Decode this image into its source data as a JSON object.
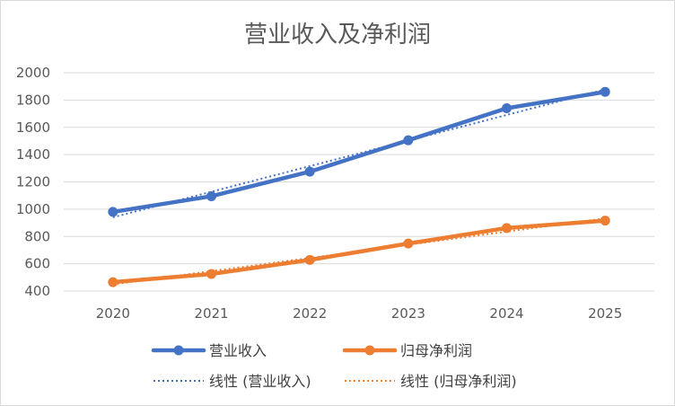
{
  "chart_data": {
    "type": "line",
    "title": "营业收入及净利润",
    "categories": [
      "2020",
      "2021",
      "2022",
      "2023",
      "2024",
      "2025"
    ],
    "ylim": [
      400,
      2000
    ],
    "yticks": [
      400,
      600,
      800,
      1000,
      1200,
      1400,
      1600,
      1800,
      2000
    ],
    "yticks_text": [
      "400",
      "600",
      "800",
      "1000",
      "1200",
      "1400",
      "1600",
      "1800",
      "2000"
    ],
    "grid": true,
    "series": [
      {
        "name": "营业收入",
        "color": "#4472c4",
        "values": [
          980,
          1095,
          1275,
          1505,
          1740,
          1860
        ]
      },
      {
        "name": "归母净利润",
        "color": "#ed7d31",
        "values": [
          465,
          525,
          628,
          748,
          862,
          916
        ]
      }
    ],
    "trendlines": [
      {
        "name": "线性 (营业收入)",
        "color": "#4472c4",
        "of_series": 0
      },
      {
        "name": "线性 (归母净利润)",
        "color": "#ed7d31",
        "of_series": 1
      }
    ],
    "legend_position": "bottom"
  }
}
